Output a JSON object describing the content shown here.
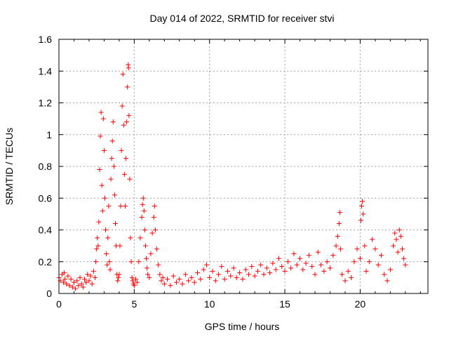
{
  "chart_data": {
    "type": "scatter",
    "title": "Day 014 of 2022, SRMTID for receiver stvi",
    "xlabel": "GPS time / hours",
    "ylabel": "SRMTID / TECUs",
    "xlim": [
      0,
      24.5
    ],
    "ylim": [
      0,
      1.6
    ],
    "xticks": [
      0,
      5,
      10,
      15,
      20
    ],
    "xtick_labels": [
      "0",
      "5",
      "10",
      "15",
      "20"
    ],
    "yticks": [
      0,
      0.2,
      0.4,
      0.6,
      0.8,
      1.0,
      1.2,
      1.4,
      1.6
    ],
    "ytick_labels": [
      "0",
      "0.2",
      "0.4",
      "0.6",
      "0.8",
      "1",
      "1.2",
      "1.4",
      "1.6"
    ],
    "grid": true,
    "marker": "+",
    "series": [
      {
        "name": "SRMTID",
        "color": "#ff0000",
        "points": [
          [
            0.0,
            0.1
          ],
          [
            0.1,
            0.08
          ],
          [
            0.2,
            0.12
          ],
          [
            0.3,
            0.07
          ],
          [
            0.35,
            0.13
          ],
          [
            0.4,
            0.09
          ],
          [
            0.5,
            0.06
          ],
          [
            0.6,
            0.11
          ],
          [
            0.7,
            0.05
          ],
          [
            0.8,
            0.09
          ],
          [
            0.9,
            0.04
          ],
          [
            1.0,
            0.07
          ],
          [
            1.1,
            0.03
          ],
          [
            1.2,
            0.08
          ],
          [
            1.3,
            0.05
          ],
          [
            1.4,
            0.1
          ],
          [
            1.5,
            0.06
          ],
          [
            1.6,
            0.04
          ],
          [
            1.7,
            0.09
          ],
          [
            1.8,
            0.07
          ],
          [
            1.9,
            0.12
          ],
          [
            2.0,
            0.08
          ],
          [
            2.1,
            0.11
          ],
          [
            2.2,
            0.06
          ],
          [
            2.3,
            0.14
          ],
          [
            2.4,
            0.1
          ],
          [
            2.45,
            0.2
          ],
          [
            2.5,
            0.28
          ],
          [
            2.55,
            0.35
          ],
          [
            2.6,
            0.3
          ],
          [
            2.65,
            0.45
          ],
          [
            2.7,
            0.78
          ],
          [
            2.75,
            0.99
          ],
          [
            2.8,
            1.14
          ],
          [
            2.85,
            0.68
          ],
          [
            2.9,
            0.52
          ],
          [
            2.95,
            1.1
          ],
          [
            3.0,
            0.9
          ],
          [
            3.05,
            0.6
          ],
          [
            3.1,
            0.4
          ],
          [
            3.15,
            0.25
          ],
          [
            3.2,
            0.18
          ],
          [
            3.25,
            0.35
          ],
          [
            3.3,
            0.55
          ],
          [
            3.35,
            0.2
          ],
          [
            3.4,
            0.15
          ],
          [
            3.45,
            0.72
          ],
          [
            3.5,
            0.85
          ],
          [
            3.55,
            0.96
          ],
          [
            3.6,
            1.08
          ],
          [
            3.65,
            0.8
          ],
          [
            3.7,
            0.62
          ],
          [
            3.75,
            0.44
          ],
          [
            3.8,
            0.3
          ],
          [
            3.85,
            0.12
          ],
          [
            3.9,
            0.08
          ],
          [
            3.95,
            0.1
          ],
          [
            4.0,
            0.12
          ],
          [
            4.05,
            0.3
          ],
          [
            4.1,
            0.55
          ],
          [
            4.15,
            0.9
          ],
          [
            4.2,
            1.18
          ],
          [
            4.25,
            1.38
          ],
          [
            4.3,
            1.06
          ],
          [
            4.35,
            0.75
          ],
          [
            4.4,
            0.55
          ],
          [
            4.45,
            0.85
          ],
          [
            4.5,
            1.08
          ],
          [
            4.55,
            1.3
          ],
          [
            4.6,
            1.44
          ],
          [
            4.62,
            1.42
          ],
          [
            4.65,
            1.12
          ],
          [
            4.7,
            0.72
          ],
          [
            4.75,
            0.35
          ],
          [
            4.8,
            0.2
          ],
          [
            4.85,
            0.1
          ],
          [
            4.9,
            0.08
          ],
          [
            4.95,
            0.06
          ],
          [
            5.0,
            0.05
          ],
          [
            5.1,
            0.09
          ],
          [
            5.2,
            0.07
          ],
          [
            5.3,
            0.2
          ],
          [
            5.4,
            0.35
          ],
          [
            5.5,
            0.48
          ],
          [
            5.55,
            0.56
          ],
          [
            5.6,
            0.6
          ],
          [
            5.65,
            0.52
          ],
          [
            5.7,
            0.4
          ],
          [
            5.75,
            0.3
          ],
          [
            5.8,
            0.22
          ],
          [
            5.85,
            0.16
          ],
          [
            5.9,
            0.12
          ],
          [
            6.0,
            0.1
          ],
          [
            6.1,
            0.25
          ],
          [
            6.2,
            0.38
          ],
          [
            6.3,
            0.48
          ],
          [
            6.35,
            0.55
          ],
          [
            6.4,
            0.4
          ],
          [
            6.5,
            0.28
          ],
          [
            6.6,
            0.18
          ],
          [
            6.7,
            0.12
          ],
          [
            6.8,
            0.08
          ],
          [
            6.9,
            0.1
          ],
          [
            7.0,
            0.06
          ],
          [
            7.2,
            0.09
          ],
          [
            7.4,
            0.05
          ],
          [
            7.6,
            0.11
          ],
          [
            7.8,
            0.07
          ],
          [
            8.0,
            0.09
          ],
          [
            8.2,
            0.06
          ],
          [
            8.4,
            0.12
          ],
          [
            8.6,
            0.08
          ],
          [
            8.8,
            0.1
          ],
          [
            9.0,
            0.07
          ],
          [
            9.2,
            0.13
          ],
          [
            9.4,
            0.09
          ],
          [
            9.6,
            0.15
          ],
          [
            9.8,
            0.18
          ],
          [
            10.0,
            0.1
          ],
          [
            10.2,
            0.14
          ],
          [
            10.4,
            0.08
          ],
          [
            10.6,
            0.12
          ],
          [
            10.8,
            0.17
          ],
          [
            11.0,
            0.09
          ],
          [
            11.2,
            0.14
          ],
          [
            11.4,
            0.11
          ],
          [
            11.6,
            0.16
          ],
          [
            11.8,
            0.1
          ],
          [
            12.0,
            0.13
          ],
          [
            12.2,
            0.09
          ],
          [
            12.4,
            0.15
          ],
          [
            12.6,
            0.12
          ],
          [
            12.8,
            0.17
          ],
          [
            13.0,
            0.11
          ],
          [
            13.2,
            0.14
          ],
          [
            13.4,
            0.18
          ],
          [
            13.6,
            0.12
          ],
          [
            13.8,
            0.16
          ],
          [
            14.0,
            0.13
          ],
          [
            14.2,
            0.19
          ],
          [
            14.4,
            0.15
          ],
          [
            14.6,
            0.22
          ],
          [
            14.8,
            0.17
          ],
          [
            15.0,
            0.14
          ],
          [
            15.2,
            0.2
          ],
          [
            15.4,
            0.16
          ],
          [
            15.6,
            0.25
          ],
          [
            15.8,
            0.18
          ],
          [
            16.0,
            0.22
          ],
          [
            16.2,
            0.15
          ],
          [
            16.4,
            0.19
          ],
          [
            16.6,
            0.24
          ],
          [
            16.8,
            0.17
          ],
          [
            17.0,
            0.12
          ],
          [
            17.2,
            0.26
          ],
          [
            17.4,
            0.18
          ],
          [
            17.6,
            0.14
          ],
          [
            17.8,
            0.2
          ],
          [
            18.0,
            0.16
          ],
          [
            18.2,
            0.24
          ],
          [
            18.4,
            0.3
          ],
          [
            18.5,
            0.36
          ],
          [
            18.6,
            0.44
          ],
          [
            18.65,
            0.51
          ],
          [
            18.7,
            0.28
          ],
          [
            18.8,
            0.12
          ],
          [
            19.0,
            0.08
          ],
          [
            19.2,
            0.14
          ],
          [
            19.4,
            0.1
          ],
          [
            19.6,
            0.2
          ],
          [
            19.8,
            0.28
          ],
          [
            20.0,
            0.22
          ],
          [
            20.05,
            0.46
          ],
          [
            20.1,
            0.55
          ],
          [
            20.15,
            0.58
          ],
          [
            20.2,
            0.5
          ],
          [
            20.3,
            0.3
          ],
          [
            20.4,
            0.14
          ],
          [
            20.6,
            0.2
          ],
          [
            20.8,
            0.34
          ],
          [
            21.0,
            0.28
          ],
          [
            21.2,
            0.18
          ],
          [
            21.4,
            0.24
          ],
          [
            21.6,
            0.12
          ],
          [
            21.8,
            0.08
          ],
          [
            22.0,
            0.15
          ],
          [
            22.2,
            0.3
          ],
          [
            22.3,
            0.38
          ],
          [
            22.4,
            0.34
          ],
          [
            22.5,
            0.26
          ],
          [
            22.6,
            0.4
          ],
          [
            22.7,
            0.36
          ],
          [
            22.8,
            0.28
          ],
          [
            22.9,
            0.22
          ],
          [
            23.0,
            0.18
          ]
        ]
      }
    ]
  }
}
